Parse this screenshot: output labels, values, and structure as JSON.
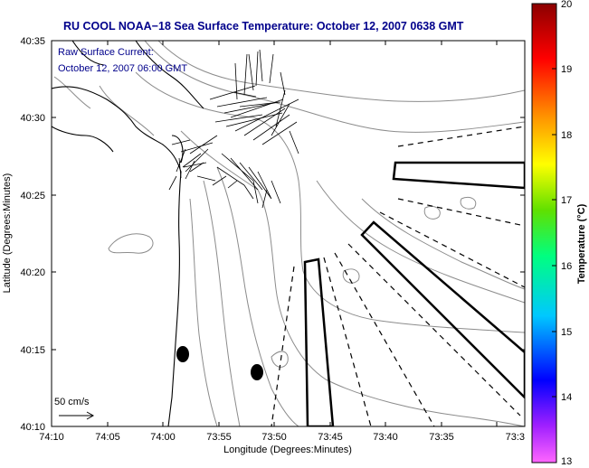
{
  "title": "RU COOL  NOAA−18  Sea Surface Temperature:  October 12, 2007 0638 GMT",
  "annotation": {
    "line1": "Raw Surface Current:",
    "line2": "October 12, 2007 06:00 GMT"
  },
  "scale_label": "50 cm/s",
  "axes": {
    "xlabel": "Longitude (Degrees:Minutes)",
    "ylabel": "Latitude (Degrees:Minutes)",
    "x_ticks": [
      "74:10",
      "74:05",
      "74:00",
      "73:55",
      "73:50",
      "73:45",
      "73:40",
      "73:35",
      "73:3"
    ],
    "y_ticks": [
      "40:35",
      "40:30",
      "40:25",
      "40:20",
      "40:15",
      "40:10"
    ]
  },
  "colorbar": {
    "label": "Temperature (°C)",
    "ticks": [
      "20",
      "19",
      "18",
      "17",
      "16",
      "15",
      "14",
      "13"
    ],
    "min": 13,
    "max": 20
  },
  "colors": {
    "title": "#00008b",
    "contour": "#8c8c8c",
    "coast": "#000000"
  }
}
